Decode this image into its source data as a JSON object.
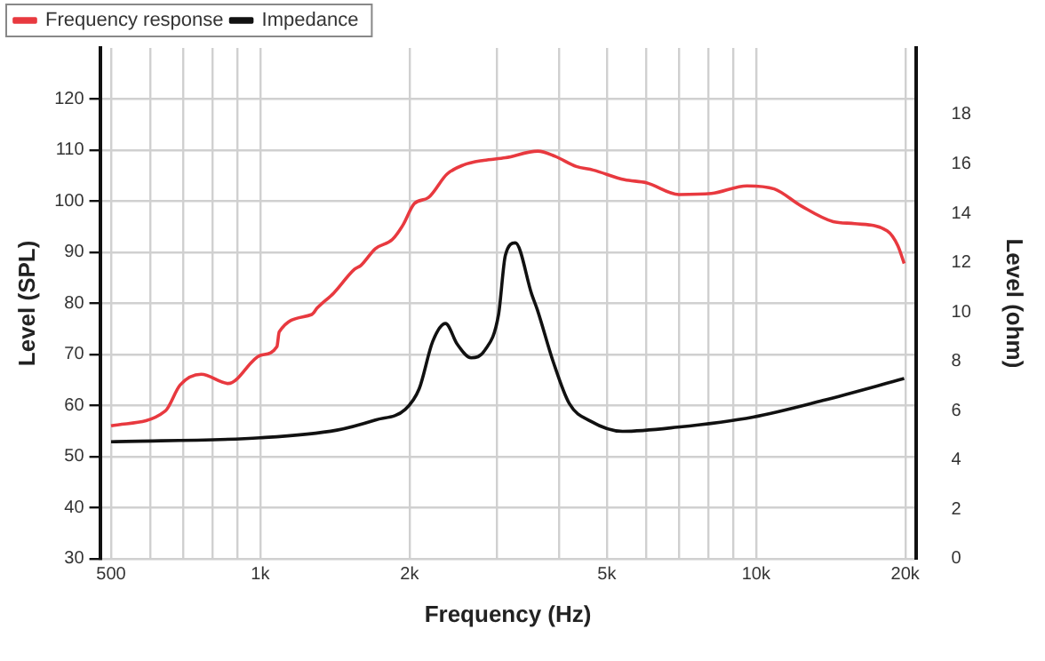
{
  "chart_data": {
    "type": "line",
    "xlabel": "Frequency (Hz)",
    "ylabel": "Level (SPL)",
    "y2label": "Level (ohm)",
    "log": "x",
    "xlim": [
      475,
      21000
    ],
    "xticks": [
      {
        "value": 500,
        "label": "500"
      },
      {
        "value": 600,
        "label": null
      },
      {
        "value": 700,
        "label": null
      },
      {
        "value": 800,
        "label": null
      },
      {
        "value": 900,
        "label": null
      },
      {
        "value": 1000,
        "label": "1k"
      },
      {
        "value": 2000,
        "label": "2k"
      },
      {
        "value": 3000,
        "label": null
      },
      {
        "value": 4000,
        "label": null
      },
      {
        "value": 5000,
        "label": "5k"
      },
      {
        "value": 6000,
        "label": null
      },
      {
        "value": 7000,
        "label": null
      },
      {
        "value": 8000,
        "label": null
      },
      {
        "value": 9000,
        "label": null
      },
      {
        "value": 10000,
        "label": "10k"
      },
      {
        "value": 20000,
        "label": "20k"
      }
    ],
    "ylim": [
      30,
      130
    ],
    "yticks": [
      30,
      40,
      50,
      60,
      70,
      80,
      90,
      100,
      110,
      120
    ],
    "y2lim": [
      0,
      20.7
    ],
    "y2ticks": [
      0,
      2,
      4,
      6,
      8,
      10,
      12,
      14,
      16,
      18
    ],
    "grid": true,
    "legend": "top left",
    "marker": "none",
    "line_style": "solid",
    "series": [
      {
        "name": "Frequency response",
        "color": "#e8393f",
        "x": [
          500,
          643,
          689,
          760,
          862,
          1000,
          1080,
          1092,
          1270,
          1303,
          1406,
          1550,
          1595,
          1707,
          1847,
          1942,
          2044,
          2183,
          2380,
          2571,
          2825,
          3122,
          3630,
          3930,
          4340,
          4690,
          5430,
          6010,
          6990,
          8130,
          9590,
          10880,
          12320,
          14310,
          15820,
          18380,
          19320,
          19900
        ],
        "values": [
          56.0,
          58.9,
          64.0,
          66.1,
          64.3,
          69.8,
          71.5,
          74.4,
          77.8,
          79.1,
          82.0,
          86.7,
          87.4,
          90.7,
          92.5,
          95.4,
          99.5,
          100.7,
          105.3,
          107.1,
          108.0,
          108.5,
          109.8,
          108.8,
          106.8,
          106.1,
          104.2,
          103.6,
          101.3,
          101.5,
          103.0,
          102.4,
          99.1,
          96.0,
          95.6,
          94.2,
          91.3,
          87.8
        ]
      },
      {
        "name": "Impedance",
        "color": "#111111",
        "axis": "y2",
        "x": [
          500,
          1000,
          1428,
          1707,
          1960,
          2092,
          2228,
          2364,
          2497,
          2663,
          2838,
          3024,
          3122,
          3270,
          3530,
          3620,
          3900,
          4200,
          4640,
          5380,
          6950,
          9860,
          13630,
          19900
        ],
        "values": [
          4.74,
          4.9,
          5.21,
          5.62,
          6.05,
          6.89,
          8.81,
          9.53,
          8.69,
          8.14,
          8.45,
          9.89,
          12.3,
          12.8,
          10.7,
          10.1,
          7.97,
          6.29,
          5.57,
          5.16,
          5.33,
          5.74,
          6.41,
          7.3
        ]
      }
    ]
  }
}
